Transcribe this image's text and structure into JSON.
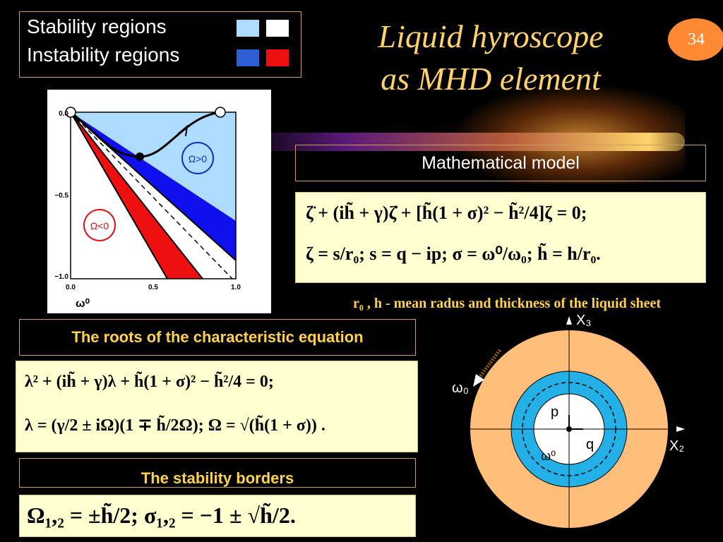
{
  "legend": {
    "stability_label": "Stability regions",
    "instability_label": "Instability regions",
    "colors": {
      "stability_inner": "#aedcff",
      "stability_outer": "#ffffff",
      "instability_inner": "#2e5ed6",
      "instability_outer": "#ee1010"
    }
  },
  "title": {
    "line1": "Liquid hyroscope",
    "line2": "as MHD element"
  },
  "page_number": "34",
  "section_math_model": "Mathematical model",
  "math_model_eq": {
    "line1": "ζ̈ + (ih̃ + γ)ζ̇ + [h̃(1 + σ)² − h̃²/4]ζ = 0;",
    "line2": "ζ = s/r₀;    s = q − ip;    σ = ω⁰/ω₀;    h̃ = h/r₀."
  },
  "caption": "r₀ , h - mean radus and thickness of the liquid sheet",
  "section_roots": "The roots of the characteristic equation",
  "roots_eq": {
    "line1": "λ² + (ih̃ + γ)λ + h̃(1 + σ)² − h̃²/4 = 0;",
    "line2": "λ = (γ/2 ± iΩ)(1 ∓ h̃/2Ω);     Ω = √(h̃(1 + σ)) ."
  },
  "section_borders": "The stability borders",
  "borders_eq": {
    "line1": "Ω₁,₂ = ±h̃/2;     σ₁,₂ = −1 ± √h̃/2."
  },
  "plot": {
    "x_ticks": [
      "0.0",
      "0.5",
      "1.0"
    ],
    "y_ticks": [
      "0.0",
      "−0.5",
      "−1.0"
    ],
    "x_label": "ω⁰",
    "curve_label": "ω₀",
    "region_pos_label": "Ω>0",
    "region_neg_label": "Ω<0"
  },
  "diagram": {
    "x3_label": "X₃",
    "x2_label": "X₂",
    "omega0_label": "ω₀",
    "omega_sup_label": "ω⁰",
    "p_label": "p",
    "q_label": "q",
    "colors": {
      "outer": "#ffbf7a",
      "ring": "#22b0e6",
      "inner": "#ffffff"
    }
  }
}
